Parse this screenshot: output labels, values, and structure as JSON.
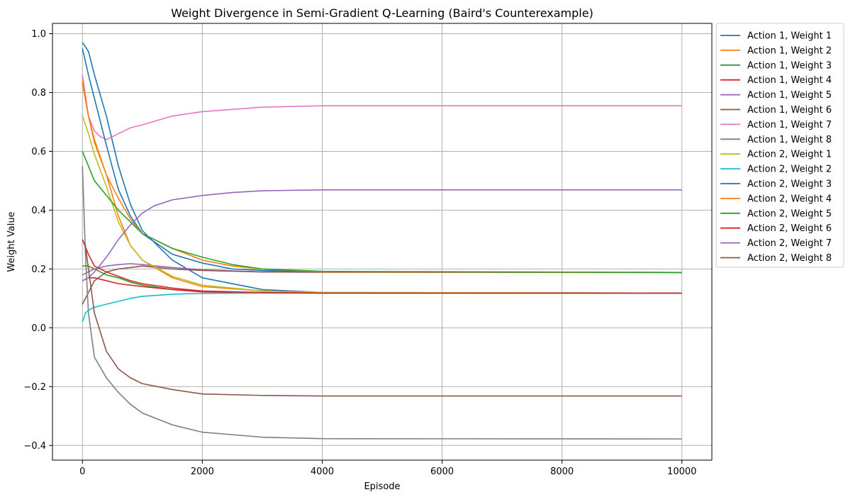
{
  "chart_data": {
    "type": "line",
    "title": "Weight Divergence in Semi-Gradient Q-Learning (Baird's Counterexample)",
    "xlabel": "Episode",
    "ylabel": "Weight Value",
    "xlim": [
      -500,
      10500
    ],
    "ylim": [
      -0.45,
      1.035
    ],
    "xticks": [
      0,
      2000,
      4000,
      6000,
      8000,
      10000
    ],
    "yticks": [
      -0.4,
      -0.2,
      0.0,
      0.2,
      0.4,
      0.6,
      0.8,
      1.0
    ],
    "xtick_labels": [
      "0",
      "2000",
      "4000",
      "6000",
      "8000",
      "10000"
    ],
    "ytick_labels": [
      "−0.4",
      "−0.2",
      "0.0",
      "0.2",
      "0.4",
      "0.6",
      "0.8",
      "1.0"
    ],
    "grid": true,
    "legend_position": "outside-upper-right",
    "series": [
      {
        "name": "Action 1, Weight 1",
        "color": "#1f77b4",
        "x": [
          0,
          100,
          200,
          400,
          600,
          800,
          1000,
          1500,
          2000,
          3000,
          4000,
          10000
        ],
        "y": [
          0.97,
          0.94,
          0.86,
          0.72,
          0.55,
          0.42,
          0.33,
          0.23,
          0.17,
          0.13,
          0.12,
          0.118
        ]
      },
      {
        "name": "Action 1, Weight 2",
        "color": "#ff7f0e",
        "x": [
          0,
          100,
          200,
          400,
          600,
          800,
          1000,
          1500,
          2000,
          3000,
          4000,
          10000
        ],
        "y": [
          0.83,
          0.72,
          0.63,
          0.52,
          0.38,
          0.28,
          0.23,
          0.17,
          0.14,
          0.125,
          0.12,
          0.118
        ]
      },
      {
        "name": "Action 1, Weight 3",
        "color": "#2ca02c",
        "x": [
          0,
          100,
          200,
          400,
          600,
          800,
          1000,
          1500,
          2000,
          3000,
          4000,
          10000
        ],
        "y": [
          0.21,
          0.21,
          0.2,
          0.18,
          0.17,
          0.155,
          0.145,
          0.13,
          0.123,
          0.12,
          0.119,
          0.118
        ]
      },
      {
        "name": "Action 1, Weight 4",
        "color": "#d62728",
        "x": [
          0,
          100,
          200,
          400,
          600,
          800,
          1000,
          1500,
          2000,
          3000,
          4000,
          10000
        ],
        "y": [
          0.16,
          0.17,
          0.17,
          0.16,
          0.15,
          0.145,
          0.14,
          0.13,
          0.122,
          0.119,
          0.118,
          0.118
        ]
      },
      {
        "name": "Action 1, Weight 5",
        "color": "#9467bd",
        "x": [
          0,
          100,
          200,
          400,
          600,
          800,
          1000,
          1500,
          2000,
          3000,
          4000,
          10000
        ],
        "y": [
          0.18,
          0.19,
          0.2,
          0.21,
          0.215,
          0.218,
          0.215,
          0.205,
          0.197,
          0.19,
          0.189,
          0.188
        ]
      },
      {
        "name": "Action 1, Weight 6",
        "color": "#8c564b",
        "x": [
          0,
          50,
          100,
          200,
          400,
          600,
          800,
          1000,
          1500,
          2000,
          3000,
          4000,
          10000
        ],
        "y": [
          0.08,
          0.1,
          0.12,
          0.16,
          0.19,
          0.2,
          0.205,
          0.21,
          0.2,
          0.195,
          0.19,
          0.189,
          0.188
        ]
      },
      {
        "name": "Action 1, Weight 7",
        "color": "#e377c2",
        "x": [
          0,
          100,
          200,
          300,
          400,
          600,
          800,
          1000,
          1500,
          2000,
          3000,
          4000,
          10000
        ],
        "y": [
          0.86,
          0.72,
          0.67,
          0.65,
          0.64,
          0.66,
          0.68,
          0.69,
          0.72,
          0.735,
          0.75,
          0.755,
          0.755
        ]
      },
      {
        "name": "Action 1, Weight 8",
        "color": "#7f7f7f",
        "x": [
          0,
          50,
          100,
          200,
          400,
          600,
          800,
          1000,
          1500,
          2000,
          3000,
          4000,
          10000
        ],
        "y": [
          0.55,
          0.25,
          0.05,
          -0.1,
          -0.17,
          -0.22,
          -0.26,
          -0.29,
          -0.33,
          -0.355,
          -0.372,
          -0.377,
          -0.378
        ]
      },
      {
        "name": "Action 2, Weight 1",
        "color": "#bcbd22",
        "x": [
          0,
          100,
          200,
          400,
          600,
          800,
          1000,
          1500,
          2000,
          3000,
          4000,
          10000
        ],
        "y": [
          0.72,
          0.66,
          0.59,
          0.48,
          0.36,
          0.28,
          0.23,
          0.175,
          0.145,
          0.125,
          0.12,
          0.118
        ]
      },
      {
        "name": "Action 2, Weight 2",
        "color": "#17becf",
        "x": [
          0,
          50,
          100,
          200,
          400,
          600,
          800,
          1000,
          1500,
          2000,
          3000,
          4000,
          10000
        ],
        "y": [
          0.02,
          0.05,
          0.06,
          0.07,
          0.08,
          0.09,
          0.1,
          0.107,
          0.114,
          0.117,
          0.118,
          0.118,
          0.118
        ]
      },
      {
        "name": "Action 2, Weight 3",
        "color": "#1f77b4",
        "x": [
          0,
          100,
          200,
          400,
          600,
          800,
          1000,
          1500,
          2000,
          2500,
          3000,
          4000,
          10000
        ],
        "y": [
          0.95,
          0.86,
          0.78,
          0.62,
          0.47,
          0.38,
          0.32,
          0.25,
          0.22,
          0.2,
          0.195,
          0.19,
          0.188
        ]
      },
      {
        "name": "Action 2, Weight 4",
        "color": "#ff7f0e",
        "x": [
          0,
          100,
          200,
          400,
          600,
          800,
          1000,
          1500,
          2000,
          2500,
          3000,
          4000,
          10000
        ],
        "y": [
          0.84,
          0.72,
          0.64,
          0.52,
          0.44,
          0.37,
          0.32,
          0.27,
          0.23,
          0.21,
          0.2,
          0.19,
          0.188
        ]
      },
      {
        "name": "Action 2, Weight 5",
        "color": "#2ca02c",
        "x": [
          0,
          100,
          200,
          400,
          600,
          800,
          1000,
          1500,
          2000,
          2500,
          3000,
          4000,
          10000
        ],
        "y": [
          0.6,
          0.55,
          0.5,
          0.45,
          0.4,
          0.36,
          0.32,
          0.27,
          0.24,
          0.215,
          0.2,
          0.192,
          0.188
        ]
      },
      {
        "name": "Action 2, Weight 6",
        "color": "#d62728",
        "x": [
          0,
          100,
          200,
          400,
          600,
          800,
          1000,
          1500,
          2000,
          3000,
          4000,
          10000
        ],
        "y": [
          0.3,
          0.25,
          0.21,
          0.19,
          0.175,
          0.16,
          0.15,
          0.135,
          0.125,
          0.12,
          0.118,
          0.118
        ]
      },
      {
        "name": "Action 2, Weight 7",
        "color": "#9467bd",
        "x": [
          0,
          100,
          200,
          400,
          600,
          800,
          1000,
          1200,
          1500,
          2000,
          2500,
          3000,
          4000,
          10000
        ],
        "y": [
          0.16,
          0.17,
          0.19,
          0.24,
          0.3,
          0.35,
          0.39,
          0.415,
          0.435,
          0.45,
          0.46,
          0.466,
          0.469,
          0.469
        ]
      },
      {
        "name": "Action 2, Weight 8",
        "color": "#8c564b",
        "x": [
          0,
          50,
          100,
          200,
          400,
          600,
          800,
          1000,
          1500,
          2000,
          3000,
          4000,
          10000
        ],
        "y": [
          0.3,
          0.28,
          0.2,
          0.05,
          -0.08,
          -0.14,
          -0.17,
          -0.19,
          -0.21,
          -0.225,
          -0.23,
          -0.232,
          -0.232
        ]
      }
    ]
  }
}
